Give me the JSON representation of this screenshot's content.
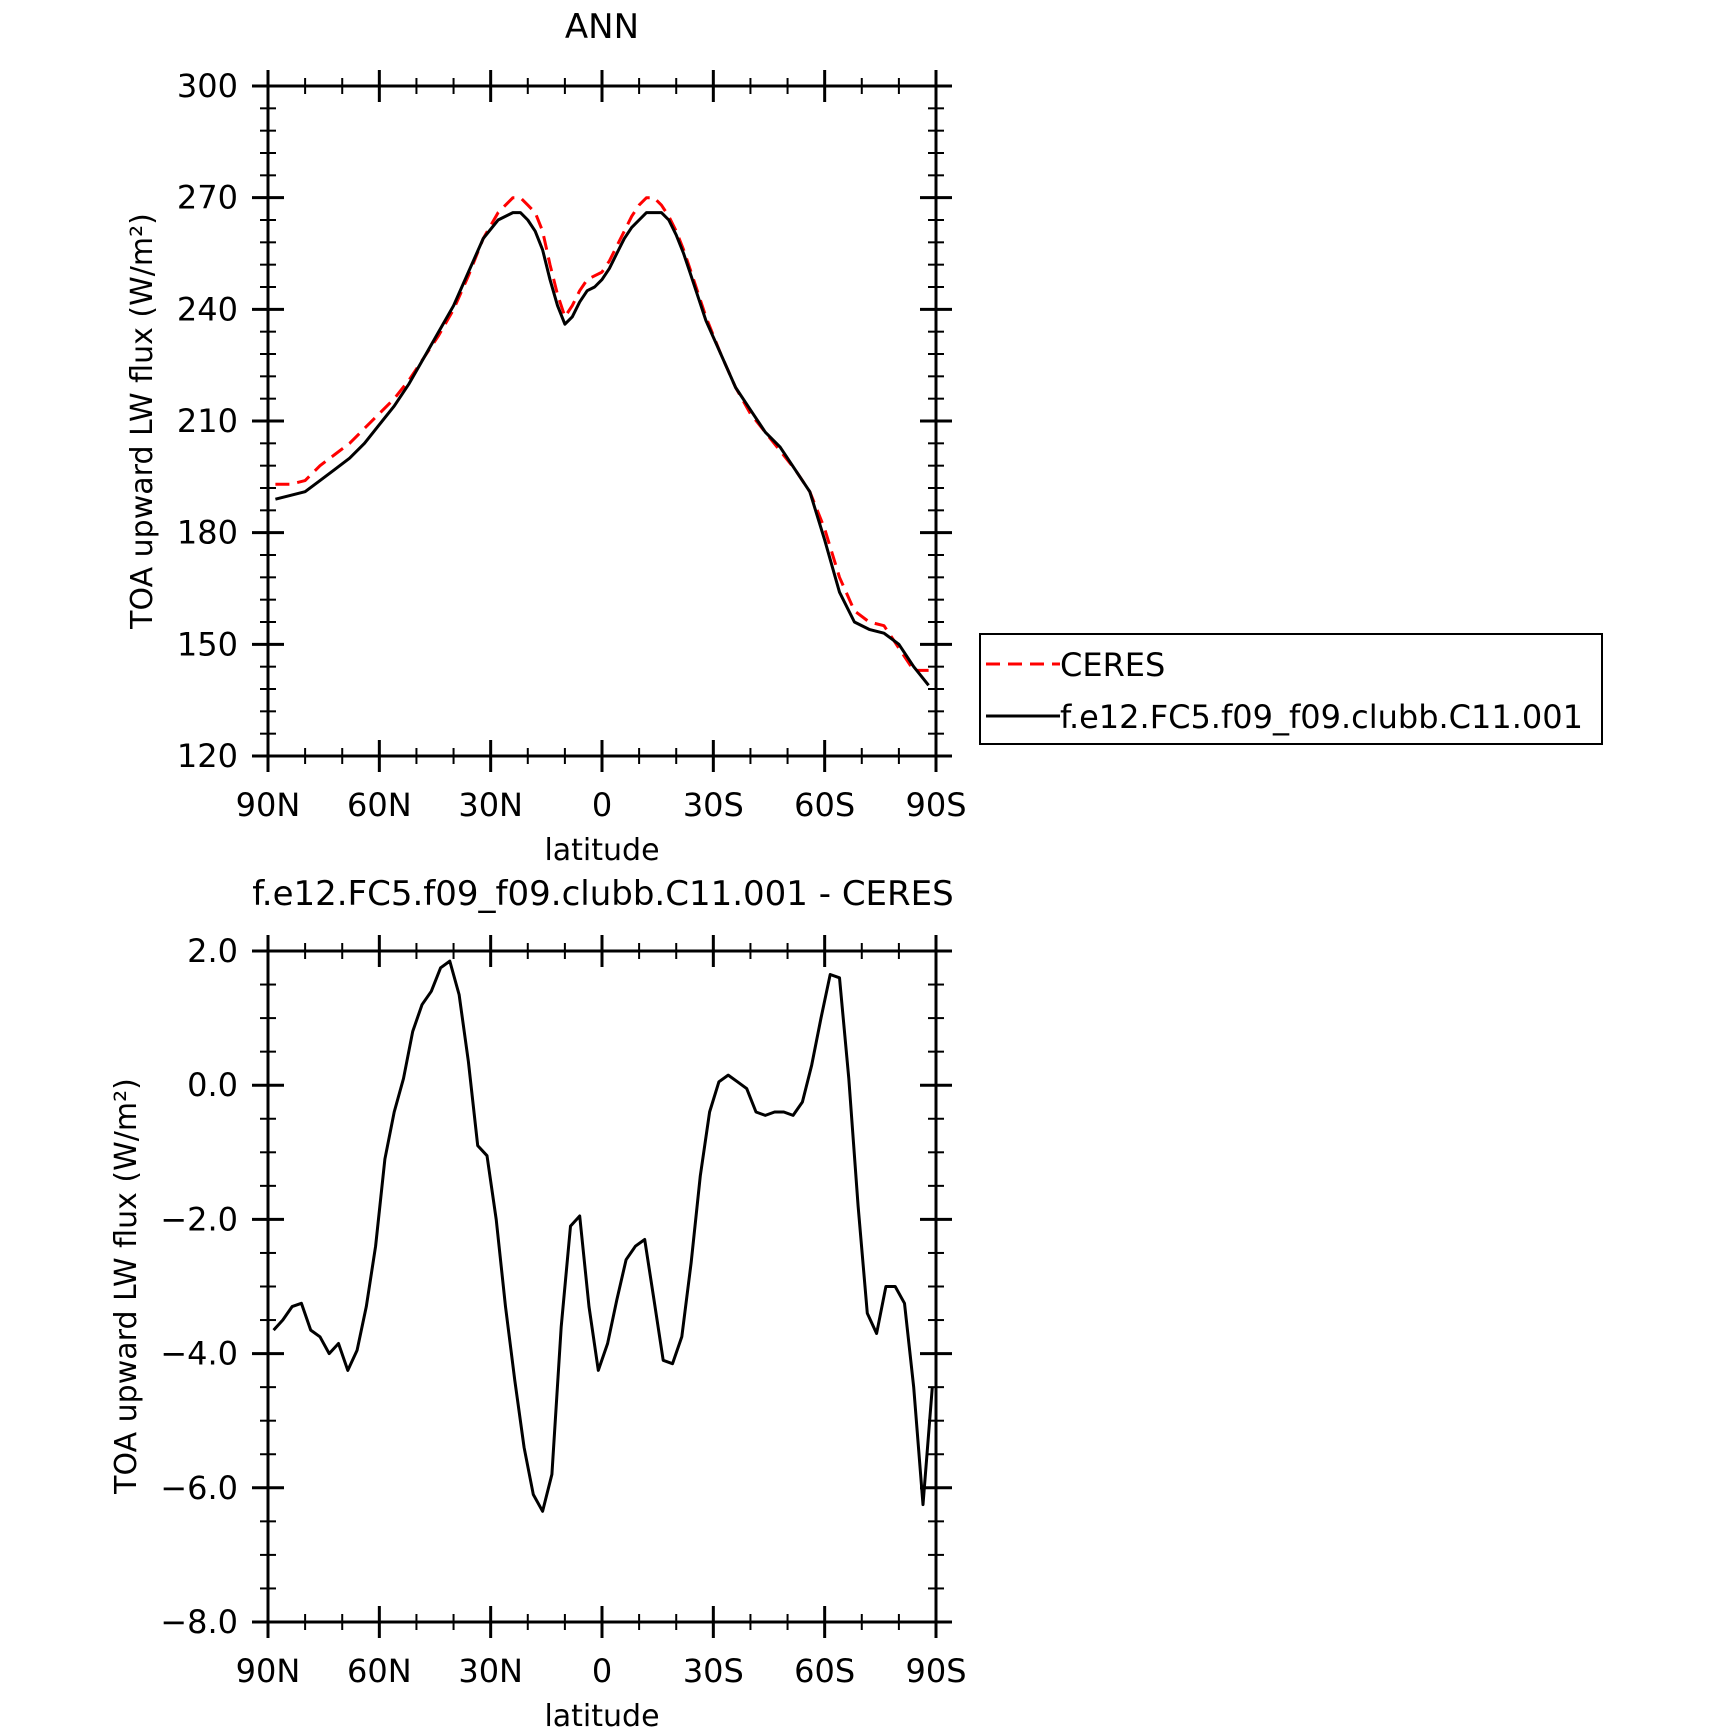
{
  "chart_data": [
    {
      "type": "line",
      "title": "ANN",
      "xlabel": "latitude",
      "ylabel": "TOA upward LW flux (W/m²)",
      "ylim": [
        120,
        300
      ],
      "yticks": [
        "120",
        "150",
        "180",
        "210",
        "240",
        "270",
        "300"
      ],
      "xlim": [
        90,
        -90
      ],
      "xticks": [
        "90N",
        "60N",
        "30N",
        "0",
        "30S",
        "60S",
        "90S"
      ],
      "legend_position": "right",
      "series": [
        {
          "name": "CERES",
          "color": "#ff0000",
          "dash": "dashed",
          "x": [
            88,
            84,
            80,
            76,
            72,
            68,
            64,
            60,
            56,
            52,
            48,
            44,
            40,
            36,
            32,
            28,
            24,
            22,
            20,
            18,
            16,
            14,
            12,
            10,
            8,
            6,
            4,
            2,
            0,
            -2,
            -4,
            -6,
            -8,
            -10,
            -12,
            -14,
            -16,
            -18,
            -20,
            -22,
            -24,
            -26,
            -28,
            -32,
            -36,
            -40,
            -44,
            -48,
            -52,
            -56,
            -60,
            -64,
            -68,
            -72,
            -76,
            -80,
            -84,
            -88
          ],
          "y": [
            193,
            193,
            194,
            198,
            201,
            204,
            208,
            212,
            216,
            221,
            227,
            233,
            240,
            249,
            259,
            266,
            270,
            270,
            268,
            266,
            261,
            252,
            244,
            238,
            241,
            245,
            248,
            249,
            250,
            253,
            257,
            261,
            265,
            268,
            270,
            270,
            268,
            265,
            261,
            256,
            250,
            244,
            238,
            228,
            219,
            212,
            207,
            202,
            197,
            191,
            181,
            168,
            159,
            156,
            155,
            149,
            143,
            143
          ]
        },
        {
          "name": "f.e12.FC5.f09_f09.clubb.C11.001",
          "color": "#000000",
          "dash": "solid",
          "x": [
            88,
            84,
            80,
            76,
            72,
            68,
            64,
            60,
            56,
            52,
            48,
            44,
            40,
            36,
            32,
            28,
            24,
            22,
            20,
            18,
            16,
            14,
            12,
            10,
            8,
            6,
            4,
            2,
            0,
            -2,
            -4,
            -6,
            -8,
            -10,
            -12,
            -14,
            -16,
            -18,
            -20,
            -22,
            -24,
            -26,
            -28,
            -32,
            -36,
            -40,
            -44,
            -48,
            -52,
            -56,
            -60,
            -64,
            -68,
            -72,
            -76,
            -80,
            -84,
            -88
          ],
          "y": [
            189,
            190,
            191,
            194,
            197,
            200,
            204,
            209,
            214,
            220,
            227,
            234,
            241,
            250,
            259,
            264,
            266,
            266,
            264,
            261,
            256,
            248,
            241,
            236,
            238,
            242,
            245,
            246,
            248,
            251,
            255,
            259,
            262,
            264,
            266,
            266,
            266,
            264,
            260,
            255,
            249,
            243,
            237,
            228,
            219,
            213,
            207,
            203,
            197,
            191,
            178,
            164,
            156,
            154,
            153,
            150,
            144,
            139
          ]
        }
      ]
    },
    {
      "type": "line",
      "title": "f.e12.FC5.f09_f09.clubb.C11.001 - CERES",
      "xlabel": "latitude",
      "ylabel": "TOA upward LW flux (W/m²)",
      "ylim": [
        -8.0,
        2.0
      ],
      "yticks": [
        "-8.0",
        "-6.0",
        "-4.0",
        "-2.0",
        "0.0",
        "2.0"
      ],
      "xlim": [
        90,
        -90
      ],
      "xticks": [
        "90N",
        "60N",
        "30N",
        "0",
        "30S",
        "60S",
        "90S"
      ],
      "series": [
        {
          "color": "#000000",
          "x": [
            88.5,
            86,
            83.5,
            81,
            78.5,
            76,
            73.5,
            71,
            68.5,
            66,
            63.5,
            61,
            58.5,
            56,
            53.5,
            51,
            48.5,
            46,
            43.5,
            41,
            38.5,
            36,
            33.5,
            31,
            28.5,
            26,
            23.5,
            21,
            18.5,
            16,
            13.5,
            11,
            8.5,
            6,
            3.5,
            1,
            -1.5,
            -4,
            -6.5,
            -9,
            -11.5,
            -14,
            -16.5,
            -19,
            -21.5,
            -24,
            -26.5,
            -29,
            -31.5,
            -34,
            -36.5,
            -39,
            -41.5,
            -44,
            -46.5,
            -49,
            -51.5,
            -54,
            -56.5,
            -59,
            -61.5,
            -64,
            -66.5,
            -69,
            -71.5,
            -74,
            -76.5,
            -79,
            -81.5,
            -84,
            -86.5,
            -89
          ],
          "y": [
            -3.65,
            -3.5,
            -3.3,
            -3.25,
            -3.65,
            -3.75,
            -4.0,
            -3.85,
            -4.25,
            -3.95,
            -3.3,
            -2.4,
            -1.1,
            -0.4,
            0.1,
            0.8,
            1.2,
            1.4,
            1.75,
            1.85,
            1.35,
            0.35,
            -0.9,
            -1.05,
            -2.0,
            -3.3,
            -4.4,
            -5.4,
            -6.1,
            -6.35,
            -5.8,
            -3.6,
            -2.1,
            -1.95,
            -3.3,
            -4.25,
            -3.85,
            -3.2,
            -2.6,
            -2.4,
            -2.3,
            -3.2,
            -4.1,
            -4.15,
            -3.75,
            -2.65,
            -1.35,
            -0.4,
            0.05,
            0.15,
            0.05,
            -0.05,
            -0.4,
            -0.45,
            -0.4,
            -0.4,
            -0.45,
            -0.25,
            0.3,
            1.0,
            1.65,
            1.6,
            0.1,
            -1.8,
            -3.4,
            -3.7,
            -3.0,
            -3.0,
            -3.25,
            -4.5,
            -6.25,
            -4.5
          ]
        }
      ]
    }
  ]
}
